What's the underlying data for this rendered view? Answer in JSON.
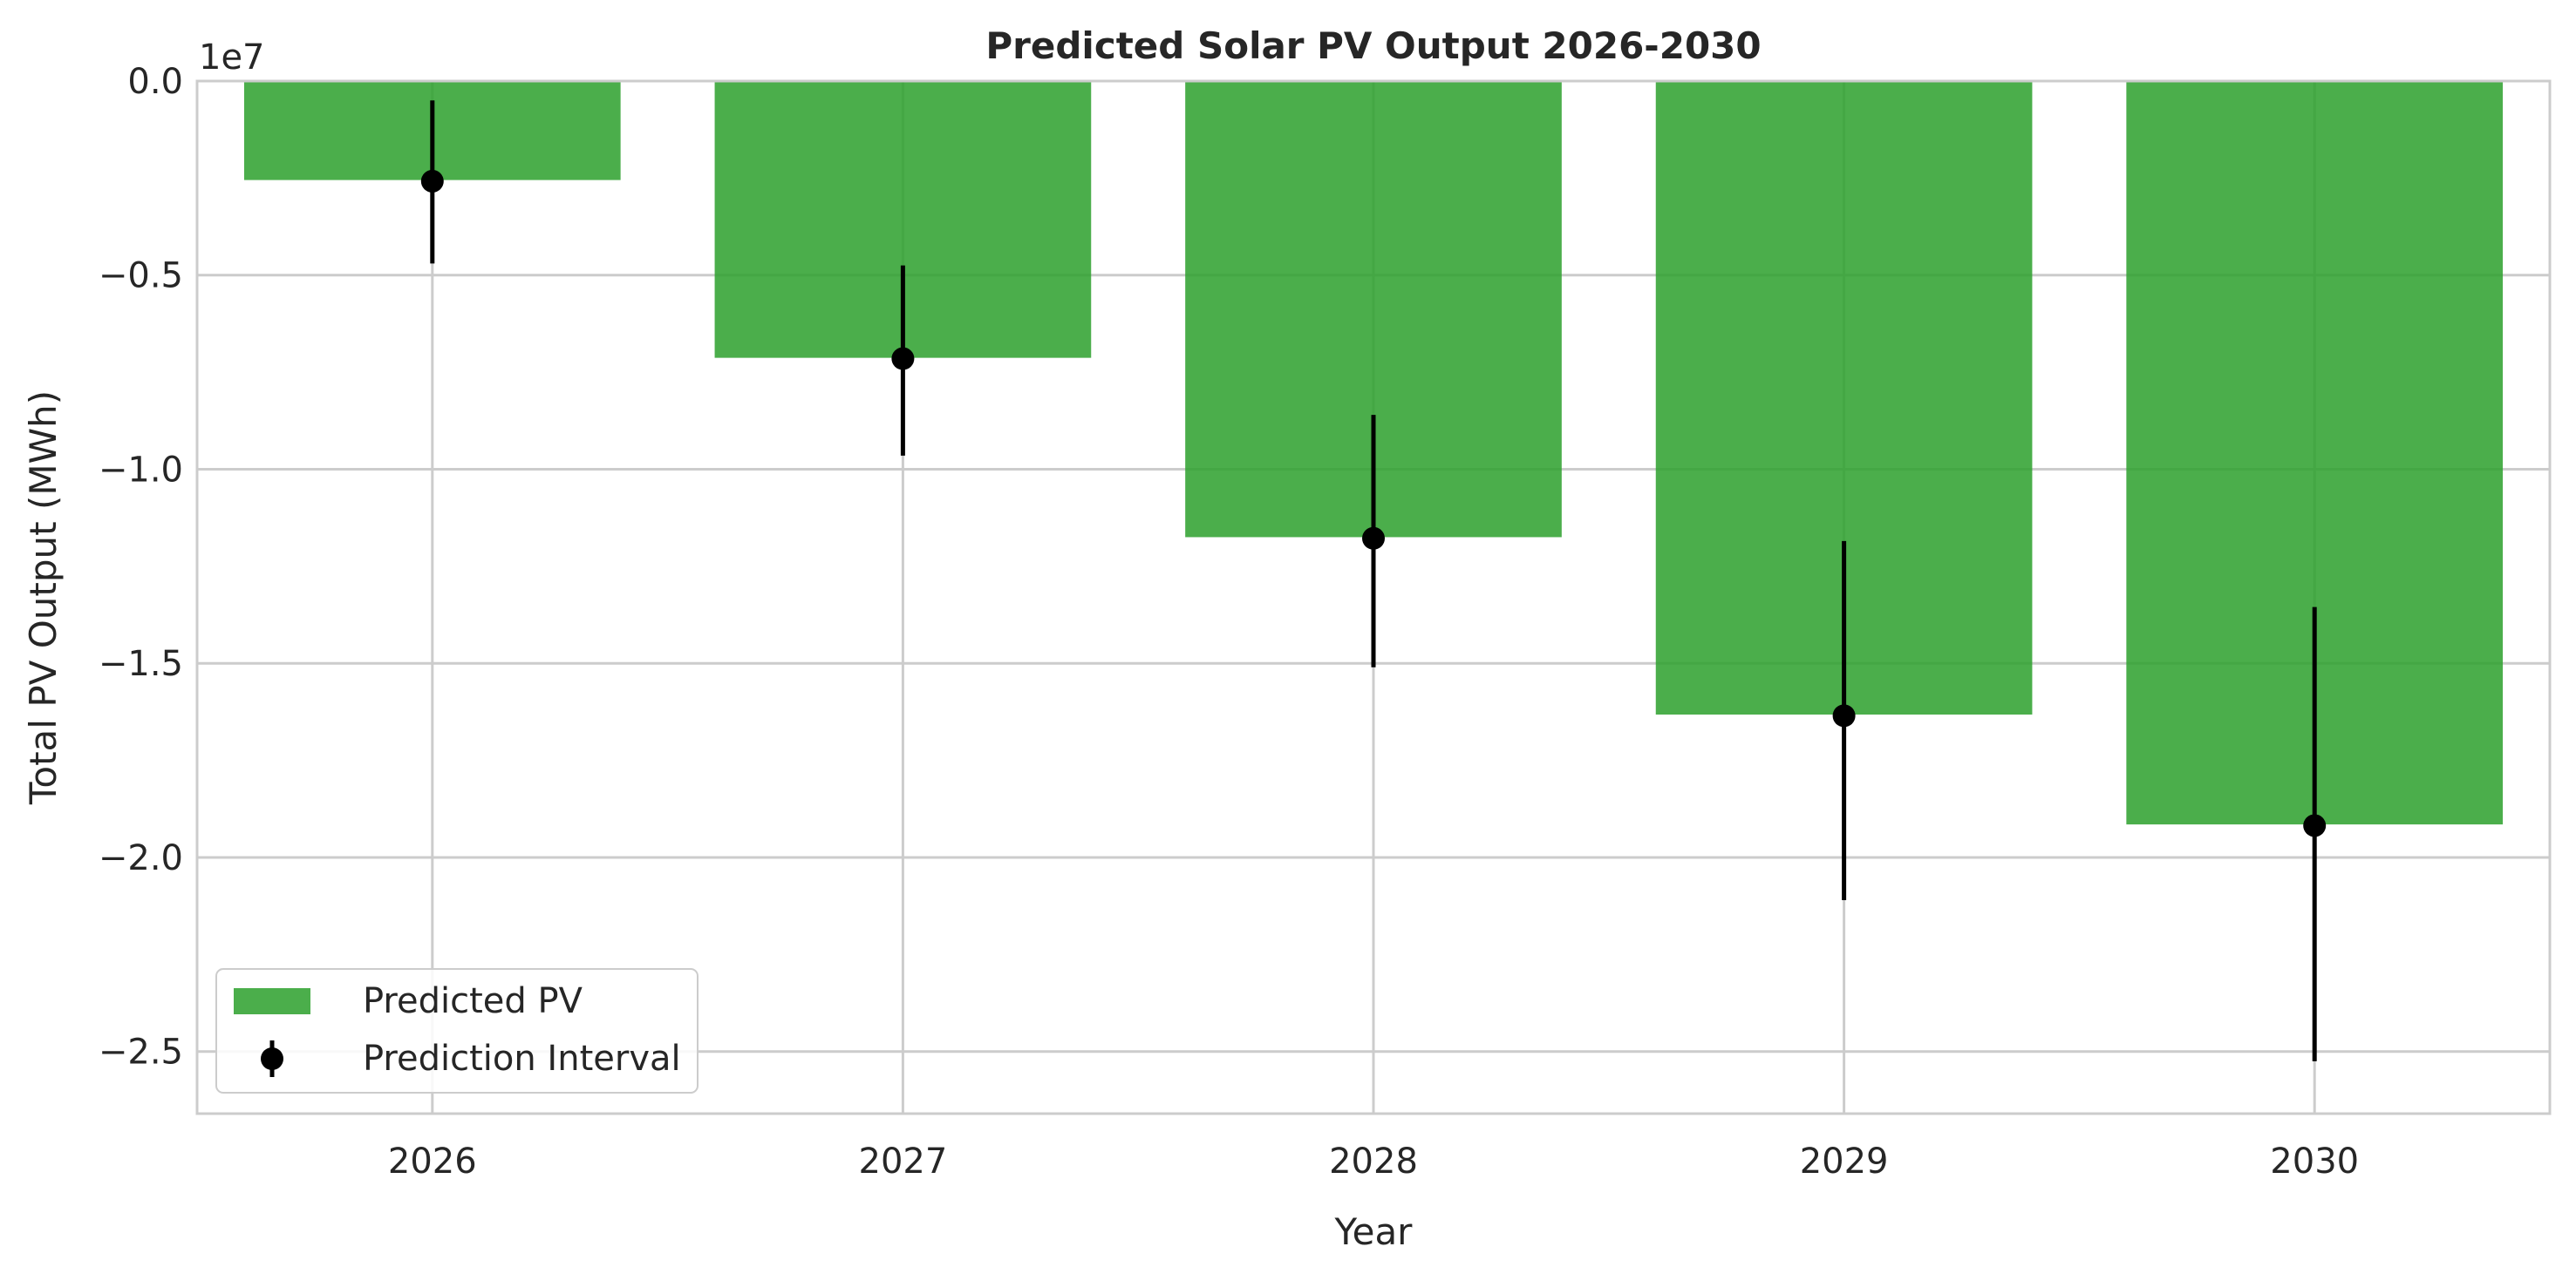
{
  "chart_data": {
    "type": "bar",
    "title": "Predicted Solar PV Output 2026-2030",
    "xlabel": "Year",
    "ylabel": "Total PV Output (MWh)",
    "offset_label": "1e7",
    "categories": [
      "2026",
      "2027",
      "2028",
      "2029",
      "2030"
    ],
    "ylim": [
      -2.66,
      0.0
    ],
    "y_ticks": [
      0.0,
      -0.5,
      -1.0,
      -1.5,
      -2.0,
      -2.5
    ],
    "y_tick_labels": [
      "0.0",
      "−0.5",
      "−1.0",
      "−1.5",
      "−2.0",
      "−2.5"
    ],
    "grid": true,
    "legend_position": "lower-left",
    "series": [
      {
        "name": "Predicted PV",
        "kind": "bar",
        "color": "#2ca02c",
        "values": [
          -0.255,
          -0.713,
          -1.175,
          -1.632,
          -1.915
        ]
      },
      {
        "name": "Prediction Interval",
        "kind": "errorbar",
        "color": "#000000",
        "values": [
          -0.258,
          -0.715,
          -1.178,
          -1.635,
          -1.918
        ],
        "lower": [
          -0.47,
          -0.965,
          -1.51,
          -2.11,
          -2.525
        ],
        "upper": [
          -0.05,
          -0.475,
          -0.86,
          -1.185,
          -1.355
        ]
      }
    ]
  }
}
